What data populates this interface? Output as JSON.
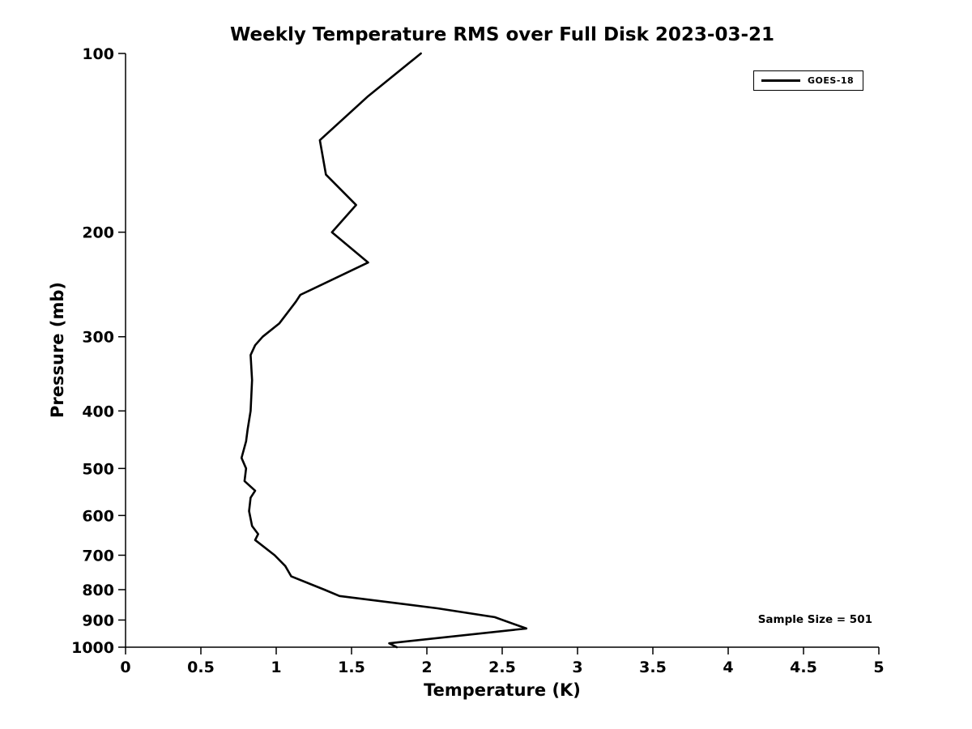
{
  "chart_data": {
    "type": "line",
    "title": "Weekly Temperature RMS over Full Disk 2023-03-21",
    "xlabel": "Temperature (K)",
    "ylabel": "Pressure (mb)",
    "xlim": [
      0,
      5
    ],
    "ylim": [
      1000,
      100
    ],
    "yscale": "log",
    "grid": false,
    "x_ticks": [
      0,
      0.5,
      1,
      1.5,
      2,
      2.5,
      3,
      3.5,
      4,
      4.5,
      5
    ],
    "x_tick_labels": [
      "0",
      "0.5",
      "1",
      "1.5",
      "2",
      "2.5",
      "3",
      "3.5",
      "4",
      "4.5",
      "5"
    ],
    "y_ticks": [
      100,
      200,
      300,
      400,
      500,
      600,
      700,
      800,
      900,
      1000
    ],
    "y_tick_labels": [
      "100",
      "200",
      "300",
      "400",
      "500",
      "600",
      "700",
      "800",
      "900",
      "1000"
    ],
    "legend": {
      "position": "top-right",
      "entries": [
        "GOES-18"
      ]
    },
    "annotation": "Sample Size = 501",
    "series": [
      {
        "name": "GOES-18",
        "color": "#000000",
        "line_width": 2.6,
        "points_format": [
          "pressure_mb",
          "rms_K"
        ],
        "points": [
          [
            100,
            1.96
          ],
          [
            118,
            1.61
          ],
          [
            140,
            1.29
          ],
          [
            160,
            1.33
          ],
          [
            180,
            1.53
          ],
          [
            200,
            1.37
          ],
          [
            225,
            1.61
          ],
          [
            255,
            1.16
          ],
          [
            262,
            1.13
          ],
          [
            285,
            1.02
          ],
          [
            300,
            0.91
          ],
          [
            310,
            0.86
          ],
          [
            322,
            0.83
          ],
          [
            355,
            0.84
          ],
          [
            400,
            0.83
          ],
          [
            430,
            0.81
          ],
          [
            450,
            0.8
          ],
          [
            480,
            0.77
          ],
          [
            500,
            0.8
          ],
          [
            525,
            0.79
          ],
          [
            545,
            0.86
          ],
          [
            560,
            0.83
          ],
          [
            590,
            0.82
          ],
          [
            625,
            0.84
          ],
          [
            645,
            0.88
          ],
          [
            660,
            0.86
          ],
          [
            700,
            0.99
          ],
          [
            730,
            1.06
          ],
          [
            760,
            1.1
          ],
          [
            800,
            1.32
          ],
          [
            820,
            1.42
          ],
          [
            860,
            2.07
          ],
          [
            890,
            2.45
          ],
          [
            930,
            2.66
          ],
          [
            985,
            1.75
          ],
          [
            1000,
            1.8
          ]
        ]
      }
    ]
  }
}
